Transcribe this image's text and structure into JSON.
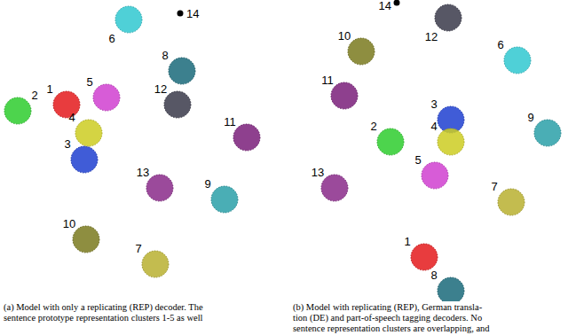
{
  "chart_data": [
    {
      "type": "scatter",
      "tick_labels": false,
      "caption": [
        "(a) Model with only a replicating (REP) decoder. The",
        "sentence prototype representation clusters 1-5 as well"
      ],
      "xlim": [
        0,
        320
      ],
      "ylim": [
        0,
        340
      ],
      "series": [
        {
          "name": "1",
          "color": "#e41a1c",
          "marker": "cluster",
          "x": [
            75
          ],
          "values": [
            222
          ]
        },
        {
          "name": "2",
          "color": "#2ecc2e",
          "marker": "cluster",
          "x": [
            20
          ],
          "values": [
            215
          ]
        },
        {
          "name": "3",
          "color": "#1f3fd0",
          "marker": "cluster",
          "x": [
            95
          ],
          "values": [
            160
          ]
        },
        {
          "name": "4",
          "color": "#cccc22",
          "marker": "cluster",
          "x": [
            100
          ],
          "values": [
            190
          ]
        },
        {
          "name": "5",
          "color": "#d040d0",
          "marker": "cluster",
          "x": [
            120
          ],
          "values": [
            230
          ]
        },
        {
          "name": "6",
          "color": "#30c8d0",
          "marker": "cluster",
          "x": [
            145
          ],
          "values": [
            318
          ]
        },
        {
          "name": "7",
          "color": "#b8b030",
          "marker": "cluster",
          "x": [
            175
          ],
          "values": [
            42
          ]
        },
        {
          "name": "8",
          "color": "#1a6a7a",
          "marker": "cluster",
          "x": [
            205
          ],
          "values": [
            260
          ]
        },
        {
          "name": "9",
          "color": "#2aa0a8",
          "marker": "cluster",
          "x": [
            253
          ],
          "values": [
            115
          ]
        },
        {
          "name": "10",
          "color": "#7a7a1e",
          "marker": "cluster",
          "x": [
            97
          ],
          "values": [
            70
          ]
        },
        {
          "name": "11",
          "color": "#7a1e7a",
          "marker": "cluster",
          "x": [
            278
          ],
          "values": [
            185
          ]
        },
        {
          "name": "12",
          "color": "#3a3a4a",
          "marker": "cluster",
          "x": [
            200
          ],
          "values": [
            222
          ]
        },
        {
          "name": "13",
          "color": "#8a2a8a",
          "marker": "cluster",
          "x": [
            180
          ],
          "values": [
            128
          ]
        },
        {
          "name": "14",
          "color": "#000000",
          "marker": "dot",
          "x": [
            203
          ],
          "values": [
            325
          ]
        }
      ]
    },
    {
      "type": "scatter",
      "tick_labels": false,
      "caption": [
        "(b) Model with replicating (REP), German transla-",
        "tion (DE) and part-of-speech tagging decoders. No",
        "sentence representation clusters are overlapping, and"
      ],
      "xlim": [
        0,
        320
      ],
      "ylim": [
        0,
        340
      ],
      "series": [
        {
          "name": "1",
          "color": "#e41a1c",
          "marker": "cluster",
          "x": [
            158
          ],
          "values": [
            50
          ]
        },
        {
          "name": "2",
          "color": "#2ecc2e",
          "marker": "cluster",
          "x": [
            120
          ],
          "values": [
            180
          ]
        },
        {
          "name": "3",
          "color": "#1f3fd0",
          "marker": "cluster",
          "x": [
            188
          ],
          "values": [
            205
          ]
        },
        {
          "name": "4",
          "color": "#cccc22",
          "marker": "cluster",
          "x": [
            188
          ],
          "values": [
            180
          ]
        },
        {
          "name": "5",
          "color": "#d040d0",
          "marker": "cluster",
          "x": [
            170
          ],
          "values": [
            142
          ]
        },
        {
          "name": "6",
          "color": "#30c8d0",
          "marker": "cluster",
          "x": [
            263
          ],
          "values": [
            272
          ]
        },
        {
          "name": "7",
          "color": "#b8b030",
          "marker": "cluster",
          "x": [
            256
          ],
          "values": [
            112
          ]
        },
        {
          "name": "8",
          "color": "#1a6a7a",
          "marker": "cluster",
          "x": [
            188
          ],
          "values": [
            12
          ]
        },
        {
          "name": "9",
          "color": "#2aa0a8",
          "marker": "cluster",
          "x": [
            297
          ],
          "values": [
            190
          ]
        },
        {
          "name": "10",
          "color": "#7a7a1e",
          "marker": "cluster",
          "x": [
            87
          ],
          "values": [
            282
          ]
        },
        {
          "name": "11",
          "color": "#7a1e7a",
          "marker": "cluster",
          "x": [
            68
          ],
          "values": [
            232
          ]
        },
        {
          "name": "12",
          "color": "#3a3a4a",
          "marker": "cluster",
          "x": [
            185
          ],
          "values": [
            320
          ]
        },
        {
          "name": "13",
          "color": "#8a2a8a",
          "marker": "cluster",
          "x": [
            57
          ],
          "values": [
            128
          ]
        },
        {
          "name": "14",
          "color": "#000000",
          "marker": "dot",
          "x": [
            127
          ],
          "values": [
            337
          ]
        }
      ]
    }
  ]
}
